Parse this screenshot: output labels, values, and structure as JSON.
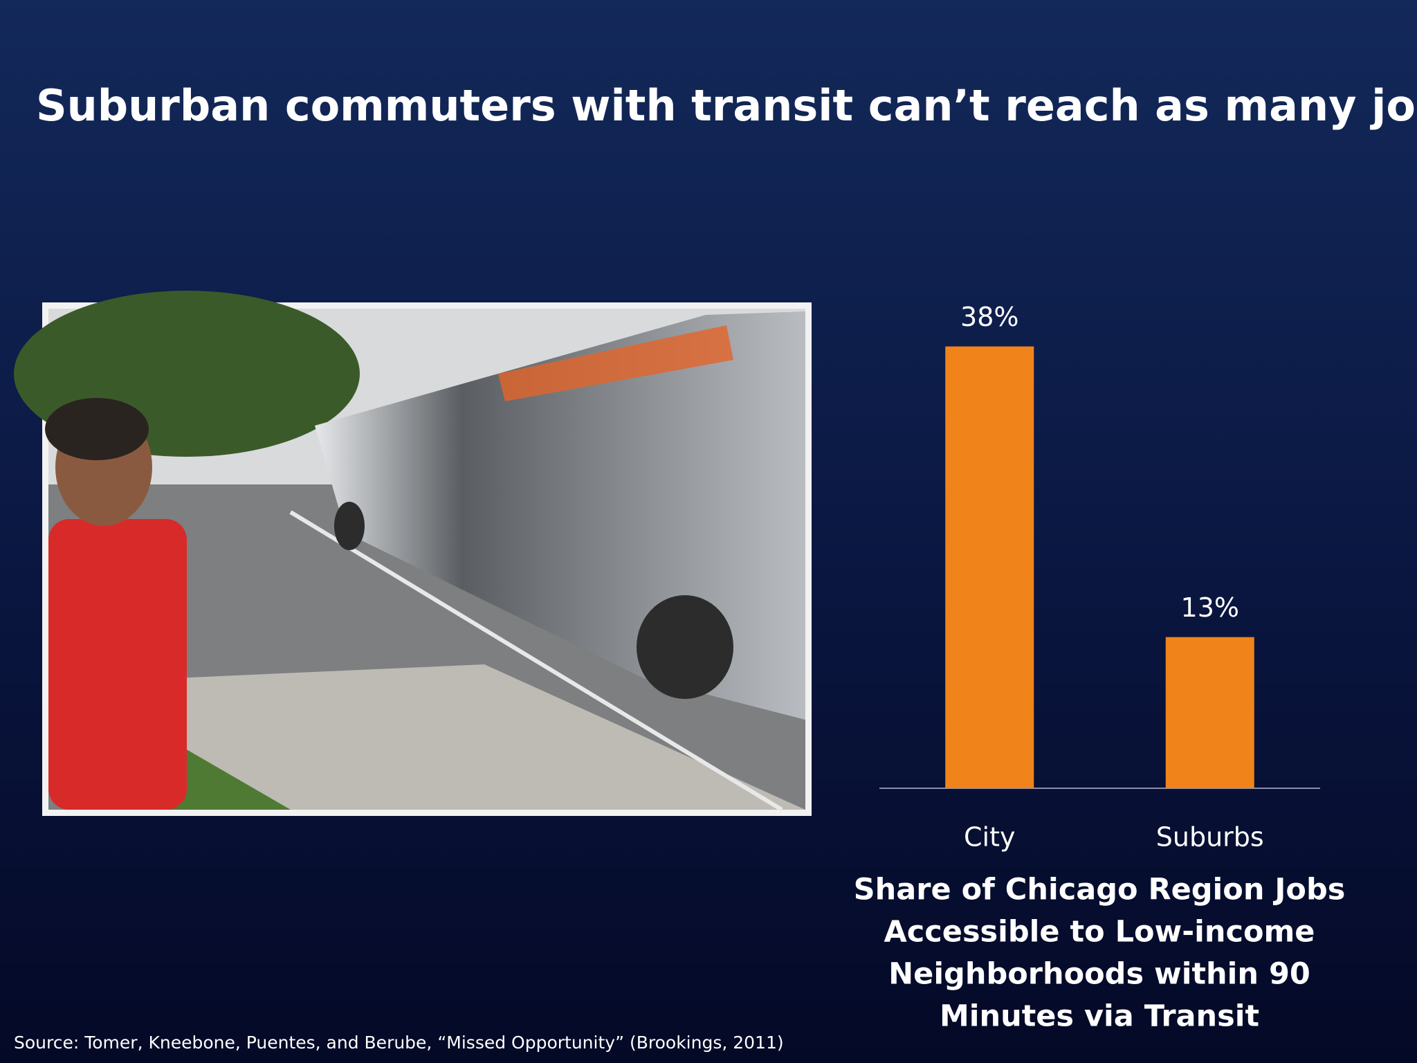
{
  "title": "Suburban commuters with transit can’t reach as many jobs",
  "source": "Source:  Tomer, Kneebone, Puentes, and Berube, “Missed Opportunity” (Brookings, 2011)",
  "chart_data": {
    "type": "bar",
    "categories": [
      "City",
      "Suburbs"
    ],
    "values": [
      38,
      13
    ],
    "value_labels": [
      "38%",
      "13%"
    ],
    "color": "#f0841a",
    "ylim": [
      0,
      40
    ],
    "caption": [
      "Share of Chicago Region Jobs",
      "Accessible to Low-income",
      "Neighborhoods within 90",
      "Minutes via Transit"
    ]
  }
}
